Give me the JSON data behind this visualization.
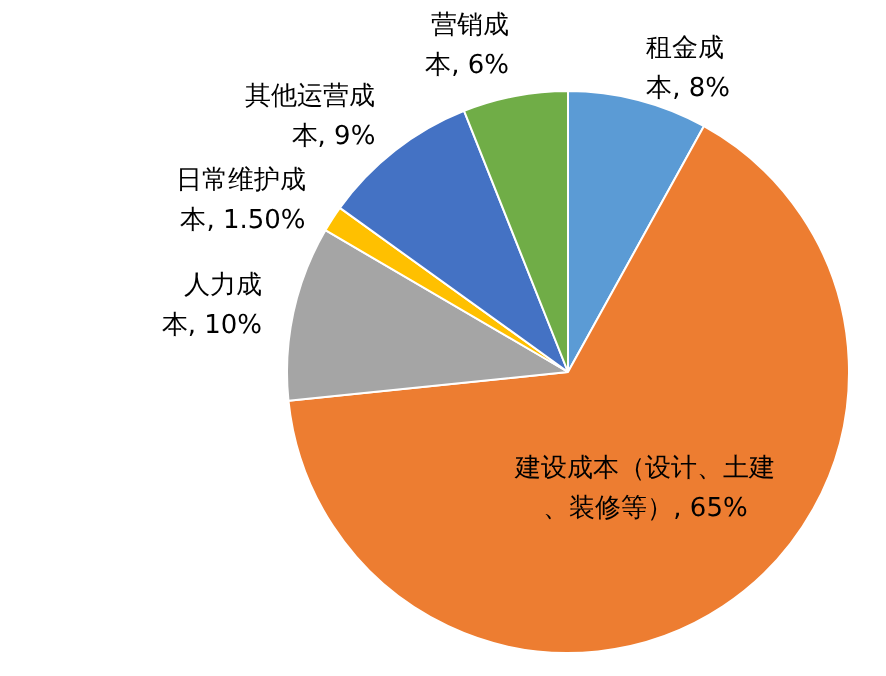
{
  "chart_data": {
    "type": "pie",
    "categories": [
      "租金成本",
      "建设成本（设计、土建、装修等）",
      "人力成本",
      "日常维护成本",
      "其他运营成本",
      "营销成本"
    ],
    "values": [
      8,
      65,
      10,
      1.5,
      9,
      6
    ],
    "value_labels": [
      "8%",
      "65%",
      "10%",
      "1.50%",
      "9%",
      "6%"
    ],
    "colors": [
      "#5b9bd5",
      "#ed7d31",
      "#a5a5a5",
      "#ffc000",
      "#4472c4",
      "#70ad47"
    ],
    "legend": false
  }
}
